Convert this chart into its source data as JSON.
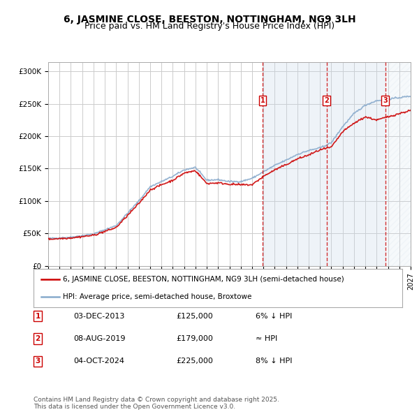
{
  "title": "6, JASMINE CLOSE, BEESTON, NOTTINGHAM, NG9 3LH",
  "subtitle": "Price paid vs. HM Land Registry's House Price Index (HPI)",
  "ylabel_ticks": [
    "£0",
    "£50K",
    "£100K",
    "£150K",
    "£200K",
    "£250K",
    "£300K"
  ],
  "ytick_values": [
    0,
    50000,
    100000,
    150000,
    200000,
    250000,
    300000
  ],
  "ylim": [
    0,
    315000
  ],
  "xlim_start": 1995,
  "xlim_end": 2027,
  "sale_dates": [
    2013.92,
    2019.59,
    2024.75
  ],
  "sale_prices": [
    125000,
    179000,
    225000
  ],
  "sale_labels": [
    "1",
    "2",
    "3"
  ],
  "sale_info": [
    [
      "1",
      "03-DEC-2013",
      "£125,000",
      "6% ↓ HPI"
    ],
    [
      "2",
      "08-AUG-2019",
      "£179,000",
      "≈ HPI"
    ],
    [
      "3",
      "04-OCT-2024",
      "£225,000",
      "8% ↓ HPI"
    ]
  ],
  "legend_entries": [
    "6, JASMINE CLOSE, BEESTON, NOTTINGHAM, NG9 3LH (semi-detached house)",
    "HPI: Average price, semi-detached house, Broxtowe"
  ],
  "line_color_red": "#cc0000",
  "line_color_blue": "#88aacc",
  "dashed_line_color": "#cc0000",
  "shading_color": "#c8d8e8",
  "grid_color": "#cccccc",
  "background_color": "#ffffff",
  "copyright_text": "Contains HM Land Registry data © Crown copyright and database right 2025.\nThis data is licensed under the Open Government Licence v3.0.",
  "title_fontsize": 10,
  "subtitle_fontsize": 9,
  "tick_fontsize": 7.5,
  "legend_fontsize": 7.5,
  "table_fontsize": 8,
  "copyright_fontsize": 6.5,
  "hpi_breakpoints": [
    1995,
    1997,
    1999,
    2001,
    2003,
    2004,
    2005,
    2006,
    2007,
    2008,
    2009,
    2010,
    2011,
    2012,
    2013,
    2014,
    2015,
    2016,
    2017,
    2018,
    2019,
    2020,
    2021,
    2022,
    2023,
    2024,
    2027
  ],
  "hpi_values": [
    42000,
    44000,
    49000,
    62000,
    100000,
    122000,
    130000,
    138000,
    148000,
    152000,
    132000,
    133000,
    130000,
    130000,
    135000,
    145000,
    155000,
    163000,
    172000,
    178000,
    182000,
    190000,
    215000,
    235000,
    248000,
    255000,
    262000
  ],
  "red_breakpoints": [
    1995,
    1997,
    1999,
    2001,
    2003,
    2004,
    2005,
    2006,
    2007,
    2008,
    2009,
    2010,
    2011,
    2012,
    2013,
    2014,
    2015,
    2016,
    2017,
    2018,
    2019,
    2020,
    2021,
    2022,
    2023,
    2024,
    2027
  ],
  "red_values": [
    41000,
    43000,
    47000,
    59000,
    96000,
    117000,
    125000,
    132000,
    143000,
    147000,
    127000,
    128000,
    126000,
    125000,
    125000,
    138000,
    148000,
    156000,
    165000,
    171000,
    179000,
    183000,
    207000,
    220000,
    230000,
    225000,
    240000
  ]
}
